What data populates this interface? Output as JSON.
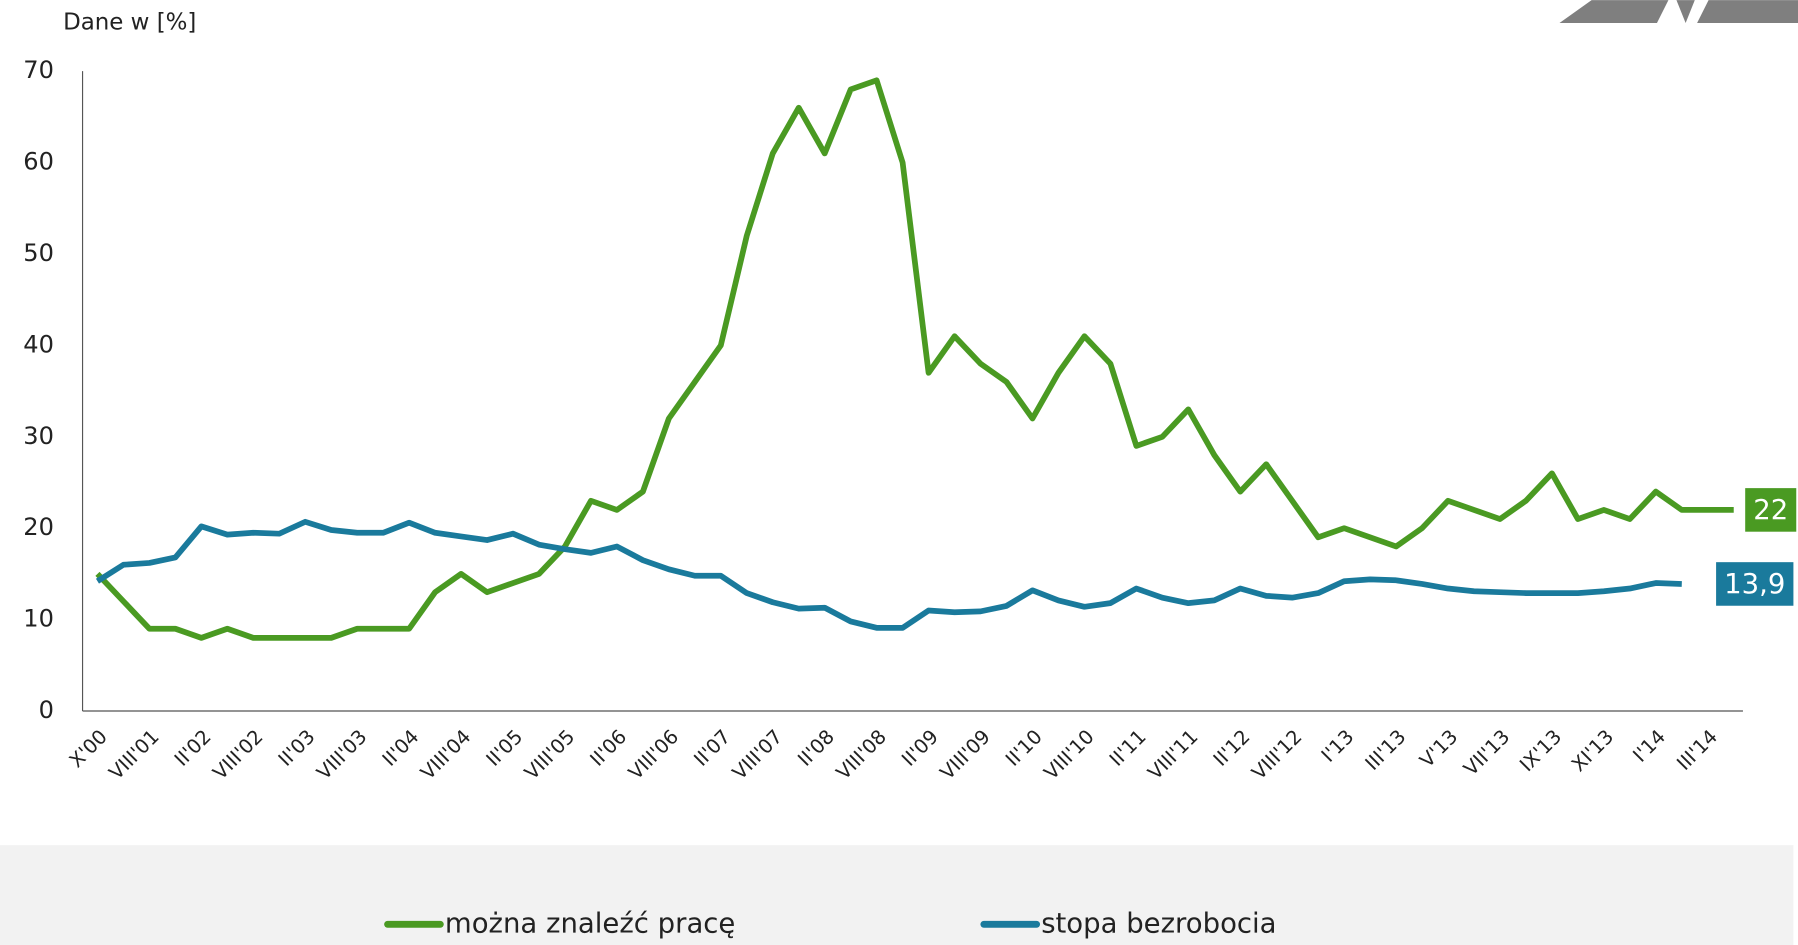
{
  "chart_data": {
    "type": "line",
    "y_label": "Dane w [%]",
    "categories": [
      "X'00",
      null,
      "VIII'01",
      null,
      "II'02",
      null,
      "VIII'02",
      null,
      "II'03",
      null,
      "VIII'03",
      null,
      "II'04",
      null,
      "VIII'04",
      null,
      "II'05",
      null,
      "VIII'05",
      null,
      "II'06",
      null,
      "VIII'06",
      null,
      "II'07",
      null,
      "VIII'07",
      null,
      "II'08",
      null,
      "VIII'08",
      null,
      "II'09",
      null,
      "VIII'09",
      null,
      "II'10",
      null,
      "VIII'10",
      null,
      "II'11",
      null,
      "VIII'11",
      null,
      "II'12",
      null,
      "VIII'12",
      null,
      "I'13",
      null,
      "III'13",
      null,
      "V'13",
      null,
      "VII'13",
      null,
      "IX'13",
      null,
      "XI'13",
      null,
      "I'14",
      null,
      "III'14",
      null
    ],
    "series": [
      {
        "name": "można znaleźć pracę",
        "color": "#4a9a22",
        "end_label": "22",
        "values": [
          15,
          12,
          9,
          9,
          8,
          9,
          8,
          8,
          8,
          8,
          9,
          9,
          9,
          13,
          15,
          13,
          14,
          15,
          18,
          23,
          22,
          24,
          32,
          36,
          40,
          52,
          61,
          66,
          61,
          68,
          69,
          60,
          37,
          41,
          38,
          36,
          32,
          37,
          41,
          38,
          29,
          30,
          33,
          28,
          24,
          27,
          23,
          19,
          20,
          19,
          18,
          20,
          23,
          22,
          21,
          23,
          26,
          21,
          22,
          21,
          24,
          22,
          22,
          22
        ]
      },
      {
        "name": "stopa bezrobocia",
        "color": "#1a7a9c",
        "end_label": "13,9",
        "values": [
          14.2,
          16,
          16.2,
          16.8,
          20.2,
          19.3,
          19.5,
          19.4,
          20.7,
          19.8,
          19.5,
          19.5,
          20.6,
          19.5,
          19.1,
          18.7,
          19.4,
          18.2,
          17.7,
          17.3,
          18,
          16.5,
          15.5,
          14.8,
          14.8,
          12.9,
          11.9,
          11.2,
          11.3,
          9.8,
          9.1,
          9.1,
          11,
          10.8,
          10.9,
          11.5,
          13.2,
          12.1,
          11.4,
          11.8,
          13.4,
          12.4,
          11.8,
          12.1,
          13.4,
          12.6,
          12.4,
          12.9,
          14.2,
          14.4,
          14.3,
          13.9,
          13.4,
          13.1,
          13,
          12.9,
          12.9,
          12.9,
          13.1,
          13.4,
          14,
          13.9,
          null,
          null
        ]
      }
    ],
    "ylim": [
      0,
      70
    ],
    "yticks": [
      0,
      10,
      20,
      30,
      40,
      50,
      60,
      70
    ],
    "grid": false,
    "legend": "bottom"
  }
}
